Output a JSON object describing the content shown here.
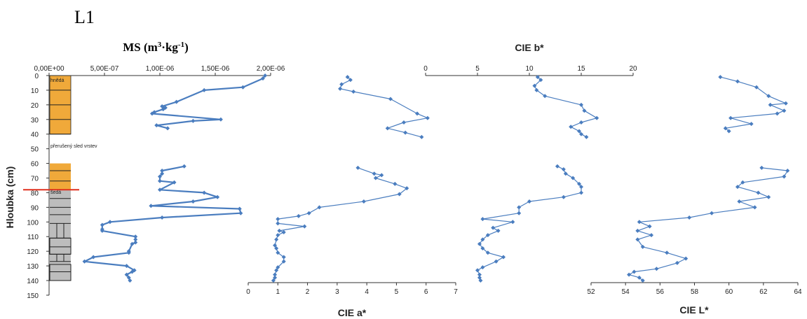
{
  "page_title": "L1",
  "y_axis": {
    "label": "Hloubka (cm)",
    "ticks": [
      "0",
      "10",
      "20",
      "30",
      "40",
      "50",
      "60",
      "70",
      "80",
      "90",
      "100",
      "110",
      "120",
      "130",
      "140",
      "150"
    ],
    "range": [
      0,
      150
    ]
  },
  "litho": {
    "upper_label": "hnědá",
    "gap_label": "přerušený sled vrstev",
    "lower_label": "šedá",
    "orange_color": "#f0a93a",
    "gray_color": "#bdbdbd",
    "boundary_color": "#e0301e"
  },
  "colors": {
    "series": "#4a7dbf"
  },
  "chart_data": [
    {
      "type": "line",
      "title_main": "MS (m",
      "title_sup1": "3",
      "title_mid": "·kg",
      "title_sup2": "-1",
      "title_end": ")",
      "xaxis_position": "top",
      "xlim": [
        0,
        2e-06
      ],
      "xticks": [
        "0,00E+00",
        "5,00E-07",
        "1,00E-06",
        "1,50E-06",
        "2,00E-06"
      ],
      "depth": [
        0,
        2,
        8,
        10,
        18,
        21,
        22,
        23,
        25,
        26,
        30,
        31,
        34,
        36,
        62,
        65,
        67,
        69,
        72,
        73,
        78,
        80,
        83,
        86,
        89,
        91,
        94,
        97,
        100,
        102,
        105,
        106,
        110,
        112,
        114,
        115,
        120,
        121,
        124,
        127,
        130,
        133,
        134,
        136,
        138,
        140
      ],
      "values": [
        1.95e-06,
        1.93e-06,
        1.75e-06,
        1.4e-06,
        1.15e-06,
        1.02e-06,
        1.05e-06,
        1.03e-06,
        9.5e-07,
        9.3e-07,
        1.55e-06,
        1.3e-06,
        9.7e-07,
        1.07e-06,
        1.22e-06,
        1.02e-06,
        1.02e-06,
        1e-06,
        1e-06,
        1.13e-06,
        1e-06,
        1.4e-06,
        1.52e-06,
        1.3e-06,
        9.2e-07,
        1.72e-06,
        1.73e-06,
        1.02e-06,
        5.5e-07,
        4.8e-07,
        4.8e-07,
        4.8e-07,
        7.8e-07,
        7.8e-07,
        7.8e-07,
        7.5e-07,
        7.2e-07,
        7.2e-07,
        4e-07,
        3.2e-07,
        7e-07,
        7.7e-07,
        7.5e-07,
        7e-07,
        7.2e-07,
        7.3e-07
      ]
    },
    {
      "type": "line",
      "title": "CIE a*",
      "xaxis_position": "bottom",
      "xlim": [
        0,
        7
      ],
      "xticks": [
        "0",
        "1",
        "2",
        "3",
        "4",
        "5",
        "6",
        "7"
      ],
      "depth": [
        1,
        3,
        6,
        9,
        11,
        16,
        26,
        29,
        32,
        36,
        39,
        42,
        63,
        67,
        68,
        70,
        74,
        77,
        81,
        86,
        90,
        94,
        96,
        98,
        101,
        103,
        106,
        107,
        109,
        112,
        116,
        118,
        121,
        124,
        127,
        131,
        133,
        136,
        138,
        140
      ],
      "values": [
        3.35,
        3.45,
        3.15,
        3.1,
        3.55,
        4.8,
        5.7,
        6.05,
        5.25,
        4.7,
        5.3,
        5.85,
        3.7,
        4.25,
        4.5,
        4.3,
        4.95,
        5.35,
        5.1,
        3.9,
        2.4,
        2.05,
        1.7,
        1.0,
        1.0,
        1.9,
        1.05,
        1.2,
        1.0,
        0.95,
        0.9,
        0.95,
        1.0,
        1.2,
        1.2,
        1.0,
        0.95,
        0.9,
        0.9,
        0.85
      ]
    },
    {
      "type": "line",
      "title": "CIE b*",
      "xaxis_position": "top",
      "xlim": [
        0,
        20
      ],
      "xticks": [
        "0",
        "5",
        "10",
        "15",
        "20"
      ],
      "depth": [
        1,
        3,
        7,
        10,
        14,
        20,
        24,
        29,
        32,
        35,
        38,
        40,
        42,
        62,
        64,
        67,
        70,
        74,
        76,
        80,
        83,
        86,
        90,
        94,
        98,
        100,
        104,
        106,
        109,
        112,
        115,
        118,
        121,
        124,
        127,
        131,
        133,
        136,
        138,
        140
      ],
      "values": [
        10.8,
        11.1,
        10.5,
        10.7,
        11.5,
        15.0,
        15.3,
        16.5,
        15.0,
        14.0,
        14.8,
        15.0,
        15.5,
        12.7,
        13.3,
        13.5,
        14.2,
        14.8,
        15.0,
        15.0,
        13.3,
        10.0,
        9.0,
        9.0,
        5.5,
        8.4,
        6.5,
        7.0,
        6.0,
        5.5,
        5.2,
        5.5,
        6.0,
        7.5,
        6.8,
        5.5,
        5.0,
        5.2,
        5.2,
        5.3
      ]
    },
    {
      "type": "line",
      "title": "CIE L*",
      "xaxis_position": "bottom",
      "xlim": [
        52,
        64
      ],
      "xticks": [
        "52",
        "54",
        "56",
        "58",
        "60",
        "62",
        "64"
      ],
      "depth": [
        1,
        4,
        8,
        14,
        19,
        20,
        24,
        26,
        29,
        33,
        36,
        38,
        63,
        65,
        69,
        73,
        76,
        80,
        83,
        86,
        90,
        94,
        97,
        100,
        103,
        106,
        109,
        112,
        117,
        121,
        125,
        128,
        132,
        134,
        136,
        138,
        140
      ],
      "values": [
        59.5,
        60.5,
        61.6,
        62.3,
        63.3,
        62.4,
        63.2,
        62.8,
        60.1,
        61.3,
        59.8,
        60.0,
        61.9,
        63.4,
        63.2,
        60.8,
        60.5,
        61.7,
        62.3,
        60.6,
        61.5,
        59.0,
        57.7,
        54.8,
        55.4,
        54.7,
        55.5,
        54.7,
        55.0,
        56.4,
        57.5,
        57.0,
        55.8,
        54.5,
        54.2,
        54.8,
        55.0
      ]
    }
  ]
}
